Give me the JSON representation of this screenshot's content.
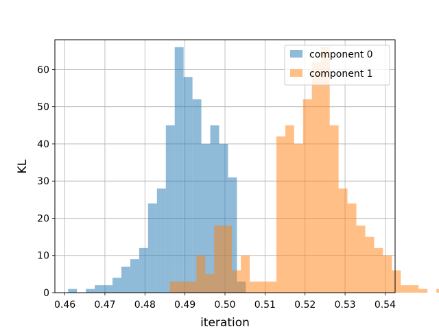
{
  "chart_data": {
    "type": "histogram",
    "xlabel": "iteration",
    "ylabel": "KL",
    "xlim": [
      0.4575,
      0.5425
    ],
    "ylim": [
      0,
      68
    ],
    "xticks": [
      "0.46",
      "0.47",
      "0.48",
      "0.49",
      "0.50",
      "0.51",
      "0.52",
      "0.53",
      "0.54"
    ],
    "yticks": [
      "0",
      "10",
      "20",
      "30",
      "40",
      "50",
      "60"
    ],
    "grid": true,
    "legend_position": "upper right",
    "series": [
      {
        "name": "component 0",
        "color": "#1f77b4",
        "alpha": 0.5,
        "bin_start": 0.4608,
        "bin_width": 0.00222,
        "counts": [
          1,
          0,
          1,
          2,
          2,
          4,
          7,
          9,
          12,
          24,
          28,
          45,
          66,
          58,
          52,
          40,
          45,
          40,
          31,
          3
        ]
      },
      {
        "name": "component 1",
        "color": "#ff7f0e",
        "alpha": 0.5,
        "bin_start": 0.4862,
        "bin_width": 0.00222,
        "counts": [
          3,
          3,
          3,
          10,
          5,
          18,
          18,
          6,
          10,
          3,
          3,
          3,
          42,
          45,
          40,
          52,
          62,
          66,
          45,
          28,
          24,
          18,
          15,
          12,
          10,
          6,
          2,
          2,
          1,
          0,
          1
        ]
      }
    ]
  }
}
